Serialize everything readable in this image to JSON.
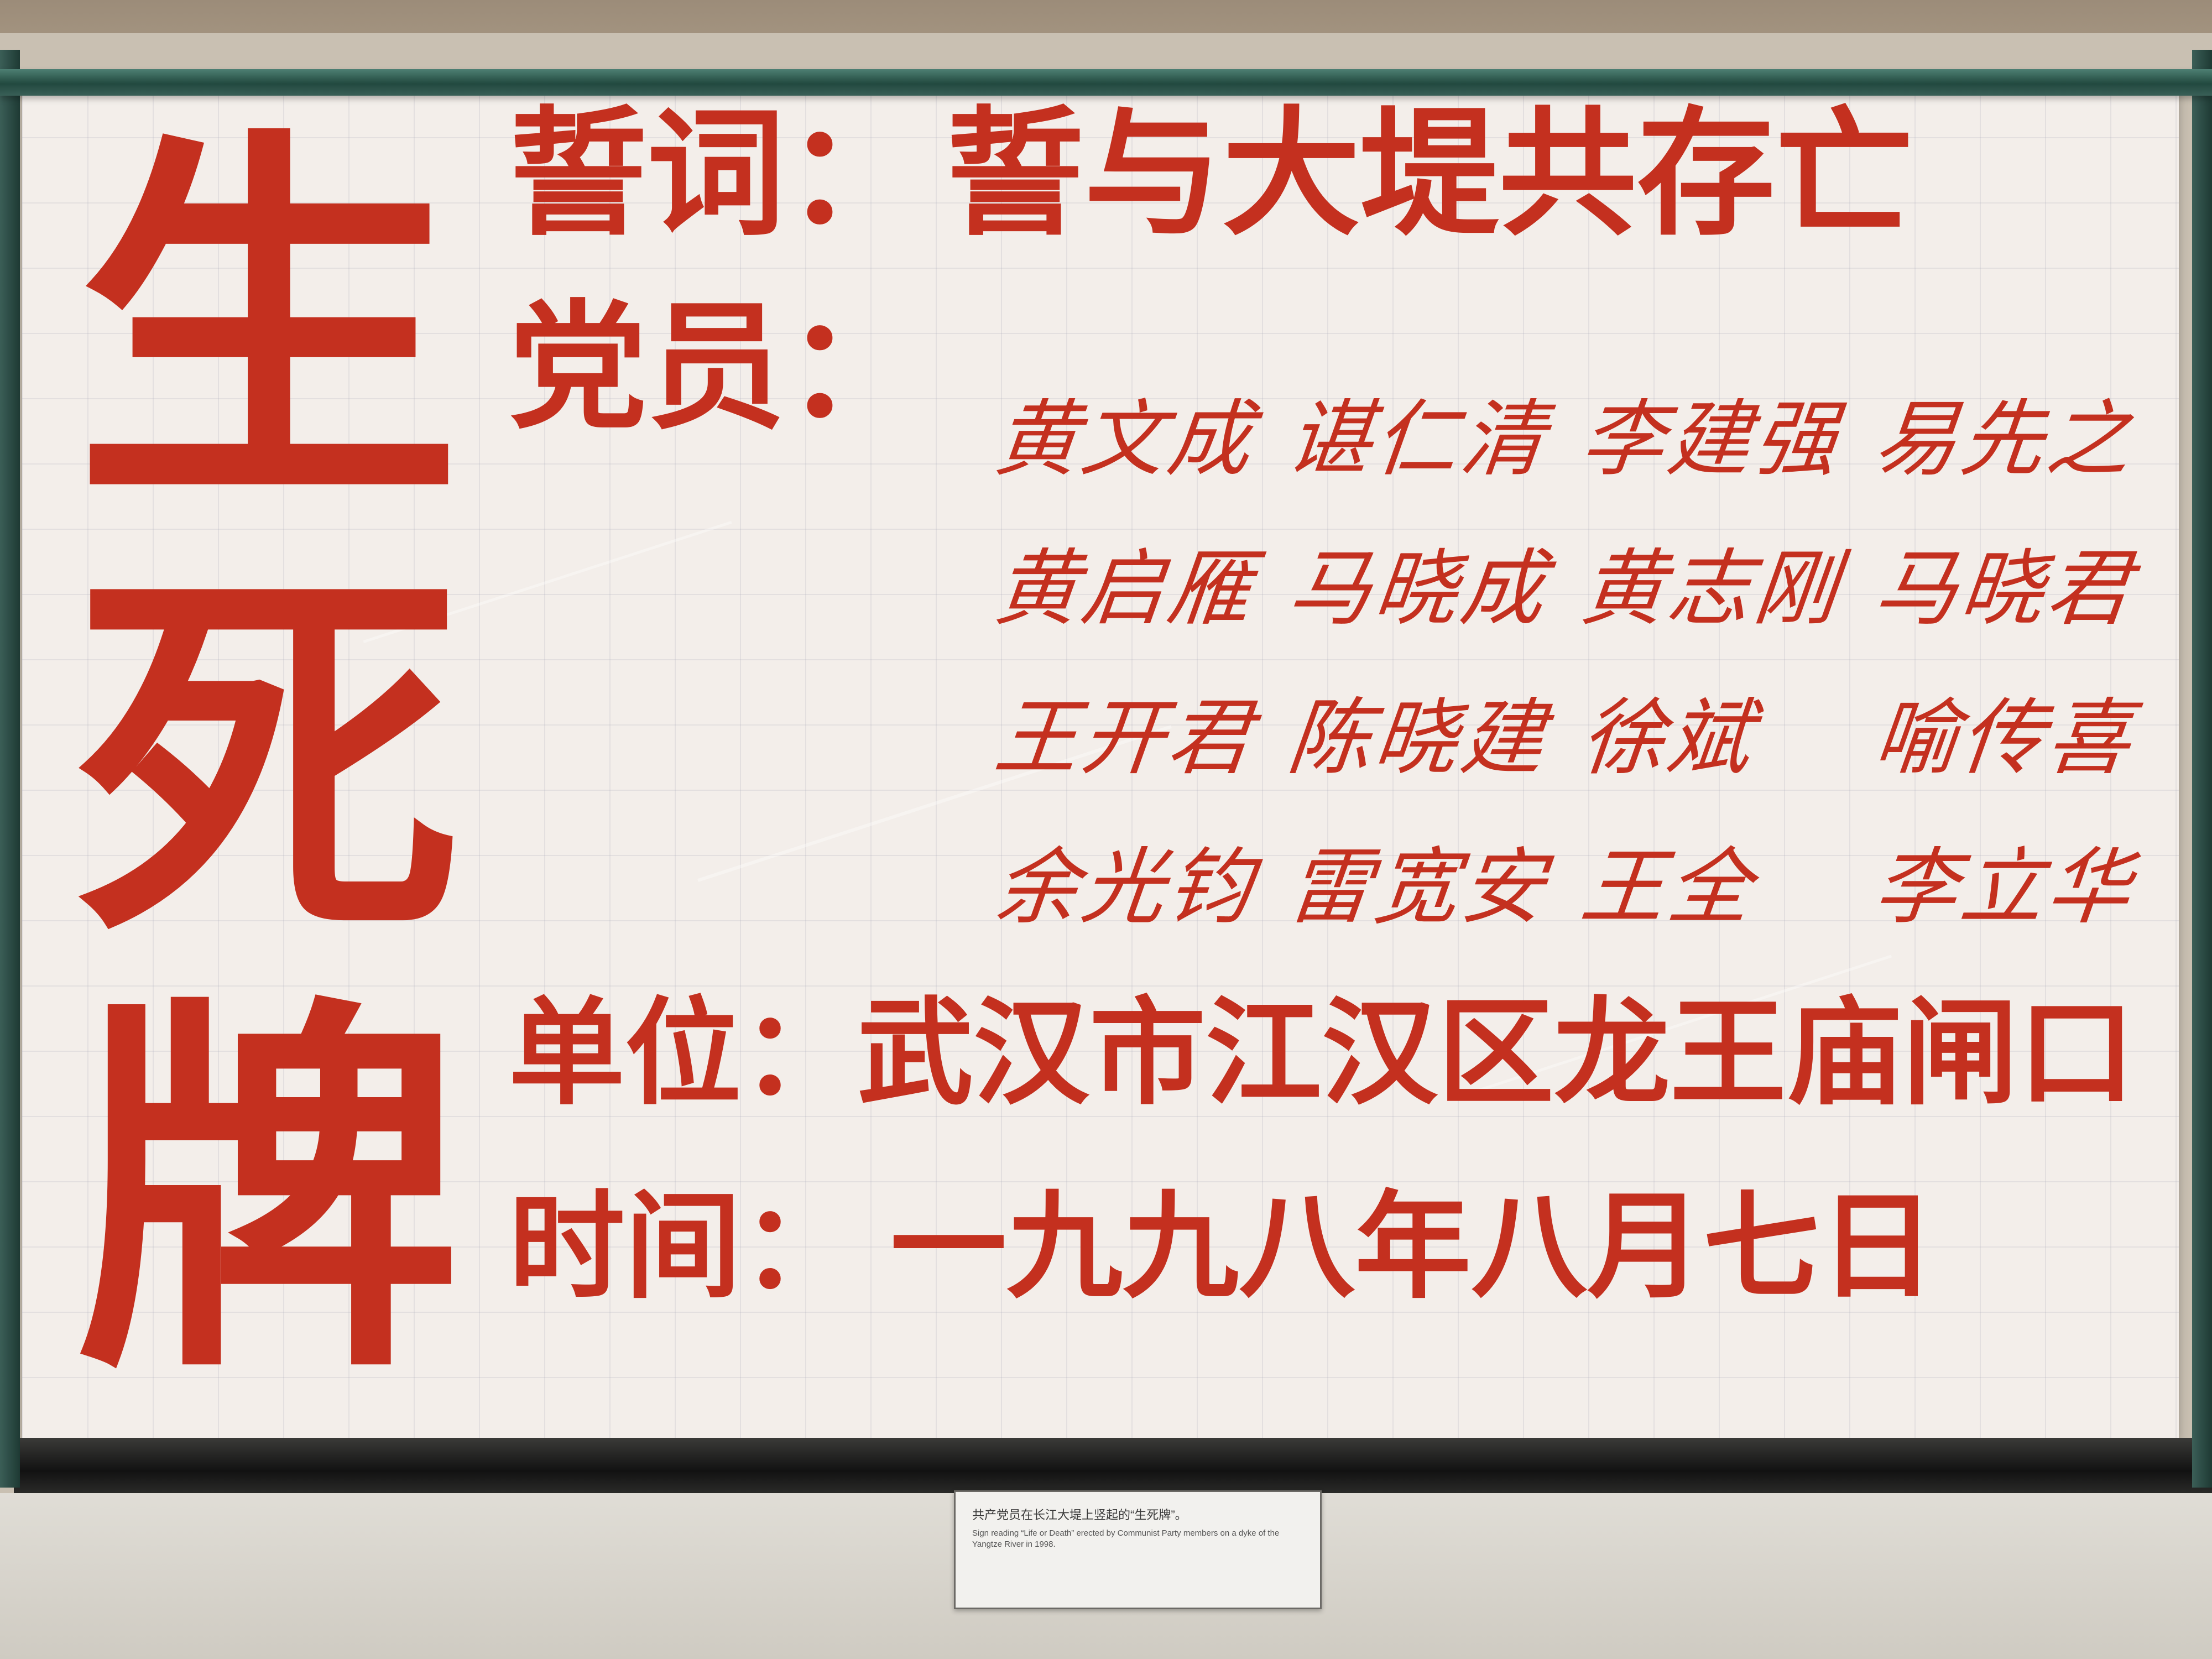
{
  "poster": {
    "big_chars": [
      "生",
      "死",
      "牌"
    ],
    "oath": {
      "label": "誓词：",
      "text": "誓与大堤共存亡"
    },
    "members": {
      "label": "党员：",
      "names": [
        "黄文成",
        "谌仁清",
        "李建强",
        "易先之",
        "黄启雁",
        "马晓成",
        "黄志刚",
        "马晓君",
        "王开君",
        "陈晓建",
        "徐斌",
        "喻传喜",
        "余光钧",
        "雷宽安",
        "王全",
        "李立华"
      ]
    },
    "unit": {
      "label": "单位：",
      "text": "武汉市江汉区龙王庙闸口"
    },
    "date": {
      "label": "时间：",
      "text": "一九九八年八月七日"
    }
  },
  "caption": {
    "chinese": "共产党员在长江大堤上竖起的“生死牌”。",
    "english": "Sign reading “Life or Death” erected by Communist Party members on a dyke of the Yangtze River in 1998."
  },
  "colors": {
    "ink_red": "#c4301f",
    "paper": "#f3eeea",
    "glass": "#2f5a50"
  }
}
